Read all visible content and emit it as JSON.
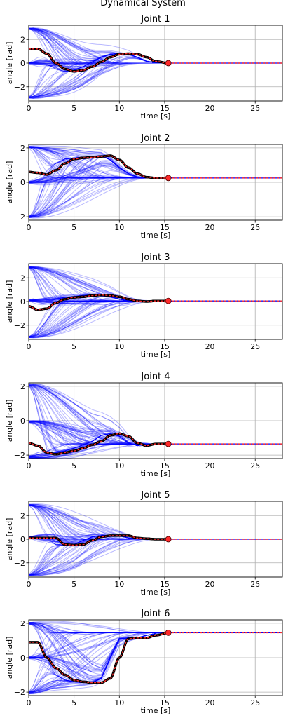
{
  "page": {
    "title": "Dynamical System"
  },
  "colors": {
    "trajectory": "#0000ff",
    "reference": "#000000",
    "marker_fill": "#ff2a2a",
    "marker_edge": "#4a0000",
    "grid": "#b0b0b0"
  },
  "chart_data": [
    {
      "type": "line",
      "title": "Joint 1",
      "xlabel": "time [s]",
      "ylabel": "angle [rad]",
      "xlim": [
        0,
        28
      ],
      "ylim": [
        -3.2,
        3.2
      ],
      "xticks": [
        0,
        5,
        10,
        15,
        20,
        25
      ],
      "yticks": [
        -2,
        0,
        2
      ],
      "grid": true,
      "fan_starts": [
        2.9,
        0.0,
        -2.9
      ],
      "series": [
        {
          "x": [
            0,
            1,
            2,
            3,
            4,
            5,
            6,
            7,
            8,
            9,
            10,
            11,
            12,
            13,
            14,
            15.4
          ],
          "y": [
            1.2,
            1.2,
            0.8,
            0.0,
            -0.5,
            -0.7,
            -0.6,
            -0.3,
            0.1,
            0.5,
            0.75,
            0.8,
            0.75,
            0.5,
            0.15,
            0.0
          ]
        }
      ],
      "final": {
        "x": 15.4,
        "y": 0.0
      },
      "hold_value": 0.0
    },
    {
      "type": "line",
      "title": "Joint 2",
      "xlabel": "time [s]",
      "ylabel": "angle [rad]",
      "xlim": [
        0,
        28
      ],
      "ylim": [
        -2.2,
        2.2
      ],
      "xticks": [
        0,
        5,
        10,
        15,
        20,
        25
      ],
      "yticks": [
        -2,
        0,
        2
      ],
      "grid": true,
      "fan_starts": [
        2.05,
        0.0,
        -2.0
      ],
      "series": [
        {
          "x": [
            0,
            1,
            2,
            3,
            4,
            5,
            6,
            7,
            8,
            9,
            10,
            11,
            12,
            13,
            14,
            15.4
          ],
          "y": [
            0.6,
            0.55,
            0.45,
            0.7,
            1.1,
            1.35,
            1.42,
            1.45,
            1.5,
            1.55,
            1.3,
            0.85,
            0.5,
            0.3,
            0.25,
            0.25
          ]
        }
      ],
      "final": {
        "x": 15.4,
        "y": 0.25
      },
      "hold_value": 0.25
    },
    {
      "type": "line",
      "title": "Joint 3",
      "xlabel": "time [s]",
      "ylabel": "angle [rad]",
      "xlim": [
        0,
        28
      ],
      "ylim": [
        -3.2,
        3.2
      ],
      "xticks": [
        0,
        5,
        10,
        15,
        20,
        25
      ],
      "yticks": [
        -2,
        0,
        2
      ],
      "grid": true,
      "fan_starts": [
        2.9,
        0.1,
        -3.0
      ],
      "series": [
        {
          "x": [
            0,
            1,
            2,
            3,
            4,
            5,
            6,
            7,
            8,
            9,
            10,
            11,
            12,
            13,
            14,
            15.4
          ],
          "y": [
            -0.4,
            -0.7,
            -0.6,
            -0.1,
            0.2,
            0.35,
            0.4,
            0.5,
            0.55,
            0.5,
            0.4,
            0.2,
            0.05,
            0.0,
            0.05,
            0.05
          ]
        }
      ],
      "final": {
        "x": 15.4,
        "y": 0.05
      },
      "hold_value": 0.05
    },
    {
      "type": "line",
      "title": "Joint 4",
      "xlabel": "time [s]",
      "ylabel": "angle [rad]",
      "xlim": [
        0,
        28
      ],
      "ylim": [
        -2.2,
        2.2
      ],
      "xticks": [
        0,
        5,
        10,
        15,
        20,
        25
      ],
      "yticks": [
        -2,
        0,
        2
      ],
      "grid": true,
      "fan_starts": [
        2.1,
        -0.05,
        -2.1
      ],
      "series": [
        {
          "x": [
            0,
            1,
            2,
            3,
            4,
            5,
            6,
            7,
            8,
            9,
            10,
            11,
            12,
            13,
            14,
            15.4
          ],
          "y": [
            -1.3,
            -1.45,
            -1.85,
            -1.95,
            -1.85,
            -1.75,
            -1.6,
            -1.4,
            -1.2,
            -0.85,
            -0.75,
            -0.9,
            -1.3,
            -1.45,
            -1.35,
            -1.35
          ]
        }
      ],
      "final": {
        "x": 15.4,
        "y": -1.35
      },
      "hold_value": -1.35
    },
    {
      "type": "line",
      "title": "Joint 5",
      "xlabel": "time [s]",
      "ylabel": "angle [rad]",
      "xlim": [
        0,
        28
      ],
      "ylim": [
        -3.2,
        3.2
      ],
      "xticks": [
        0,
        5,
        10,
        15,
        20,
        25
      ],
      "yticks": [
        -2,
        0,
        2
      ],
      "grid": true,
      "fan_starts": [
        2.9,
        0.15,
        -3.0
      ],
      "series": [
        {
          "x": [
            0,
            1,
            2,
            3,
            4,
            5,
            6,
            7,
            8,
            9,
            10,
            11,
            12,
            13,
            14,
            15.4
          ],
          "y": [
            0.1,
            0.1,
            0.1,
            0.1,
            -0.45,
            -0.5,
            -0.45,
            -0.1,
            0.2,
            0.3,
            0.3,
            0.3,
            0.1,
            0.05,
            0.0,
            0.0
          ]
        }
      ],
      "final": {
        "x": 15.4,
        "y": 0.0
      },
      "hold_value": 0.0
    },
    {
      "type": "line",
      "title": "Joint 6",
      "xlabel": "time [s]",
      "ylabel": "angle [rad]",
      "xlim": [
        0,
        28
      ],
      "ylim": [
        -2.2,
        2.2
      ],
      "xticks": [
        0,
        5,
        10,
        15,
        20,
        25
      ],
      "yticks": [
        -2,
        0,
        2
      ],
      "grid": true,
      "fan_starts": [
        2.0,
        0.0,
        -2.05
      ],
      "series": [
        {
          "x": [
            0,
            1,
            2,
            3,
            4,
            5,
            6,
            7,
            8,
            9,
            10,
            11,
            12,
            13,
            14,
            15.4
          ],
          "y": [
            0.9,
            0.9,
            0.0,
            -0.6,
            -1.0,
            -1.3,
            -1.4,
            -1.45,
            -1.45,
            -1.2,
            0.0,
            1.1,
            1.15,
            1.15,
            1.3,
            1.45
          ]
        }
      ],
      "final": {
        "x": 15.4,
        "y": 1.45
      },
      "hold_value": 1.45
    }
  ]
}
